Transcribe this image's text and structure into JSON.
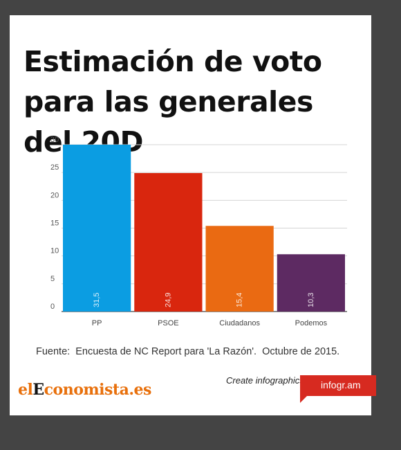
{
  "title": "Estimación de voto para las generales del 20D",
  "source": "Fuente:  Encuesta de NC Report para 'La Razón'.  Octubre de 2015.",
  "footer": {
    "brand_el": "el",
    "brand_e": "E",
    "brand_rest": "conomista.es",
    "create_text": "Create infographics",
    "infogram_label": "infogr.am",
    "brand_color": "#e8700c",
    "infogram_color": "#d72a20"
  },
  "chart_data": {
    "type": "bar",
    "categories": [
      "PP",
      "PSOE",
      "Ciudadanos",
      "Podemos"
    ],
    "values": [
      31.5,
      24.9,
      15.4,
      10.3
    ],
    "value_labels": [
      "31,5",
      "24,9",
      "15,4",
      "10,3"
    ],
    "colors": [
      "#0b9de2",
      "#d9260e",
      "#ea6a12",
      "#5d2a62"
    ],
    "ylim": [
      0,
      30
    ],
    "yticks": [
      0,
      5,
      10,
      15,
      20,
      25,
      30
    ],
    "grid": true,
    "title": "Estimación de voto para las generales del 20D"
  }
}
